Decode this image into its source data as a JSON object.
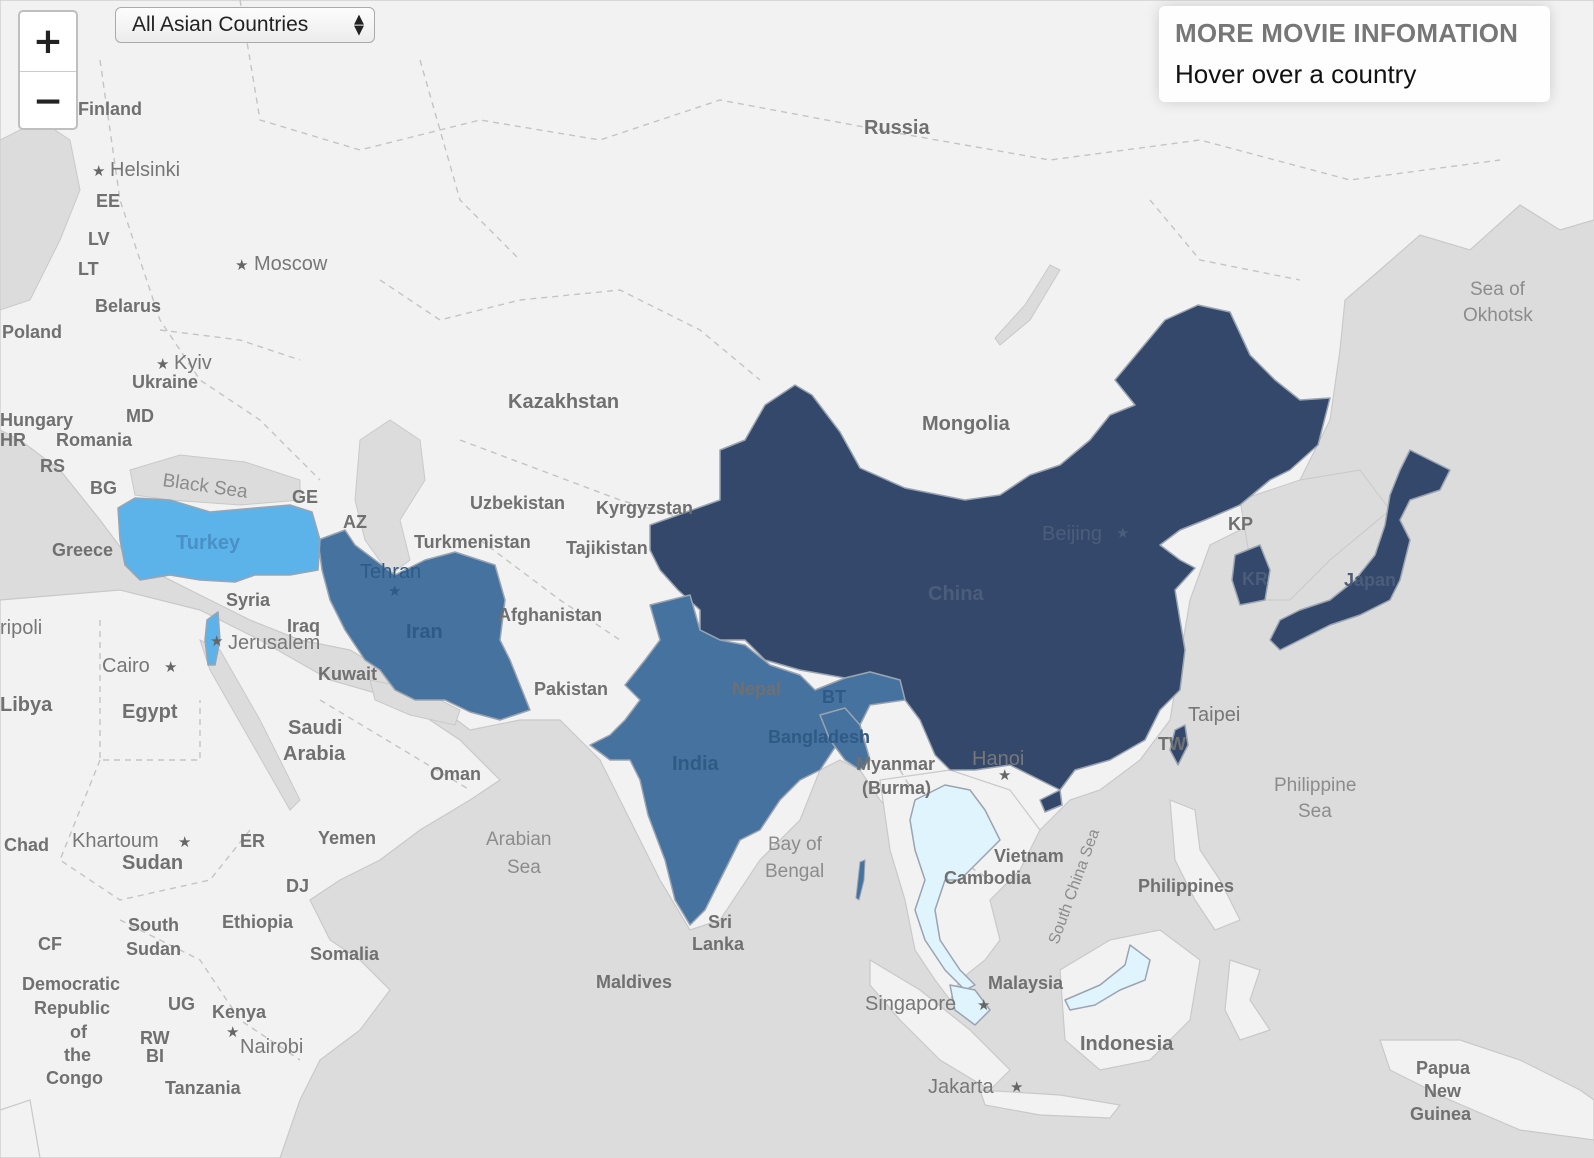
{
  "controls": {
    "zoom_in": "+",
    "zoom_out": "−",
    "region_select": "All Asian Countries"
  },
  "info_panel": {
    "title": "MORE MOVIE INFOMATION",
    "hint": "Hover over a country"
  },
  "colors": {
    "ocean": "#dcdcdc",
    "land": "#f2f2f2",
    "highest": "#34486b",
    "high": "#45729f",
    "medium": "#5cb3ea",
    "low": "#dff4fc"
  },
  "highlighted_countries": {
    "China": "highest",
    "Japan": "highest",
    "KR": "highest",
    "TW": "highest",
    "India": "high",
    "Iran": "high",
    "Bangladesh": "high",
    "Turkey": "medium",
    "Israel": "medium",
    "Thailand": "low",
    "Malaysia": "low"
  },
  "labels": {
    "russia": "Russia",
    "finland": "Finland",
    "helsinki": "Helsinki",
    "ee": "EE",
    "lv": "LV",
    "lt": "LT",
    "moscow": "Moscow",
    "belarus": "Belarus",
    "poland": "Poland",
    "kyiv": "Kyiv",
    "ukraine": "Ukraine",
    "hungary": "Hungary",
    "md": "MD",
    "hr": "HR",
    "romania": "Romania",
    "rs": "RS",
    "bg": "BG",
    "greece": "Greece",
    "black_sea": "Black Sea",
    "ge": "GE",
    "az": "AZ",
    "turkey": "Turkey",
    "kazakhstan": "Kazakhstan",
    "mongolia": "Mongolia",
    "uzbekistan": "Uzbekistan",
    "kyrgyzstan": "Kyrgyzstan",
    "turkmenistan": "Turkmenistan",
    "tajikistan": "Tajikistan",
    "tehran": "Tehran",
    "iran": "Iran",
    "syria": "Syria",
    "iraq": "Iraq",
    "jerusalem": "Jerusalem",
    "tripoli": "ripoli",
    "cairo": "Cairo",
    "libya": "Libya",
    "egypt": "Egypt",
    "kuwait": "Kuwait",
    "saudi_1": "Saudi",
    "saudi_2": "Arabia",
    "oman": "Oman",
    "yemen": "Yemen",
    "afghanistan": "Afghanistan",
    "pakistan": "Pakistan",
    "nepal": "Nepal",
    "bt": "BT",
    "india": "India",
    "bangladesh": "Bangladesh",
    "china": "China",
    "beijing": "Beijing",
    "kp": "KP",
    "kr": "KR",
    "japan": "Japan",
    "taipei": "Taipei",
    "tw": "TW",
    "myanmar_1": "Myanmar",
    "myanmar_2": "(Burma)",
    "hanoi": "Hanoi",
    "vietnam": "Vietnam",
    "cambodia": "Cambodia",
    "philippines": "Philippines",
    "philippine_sea_1": "Philippine",
    "philippine_sea_2": "Sea",
    "south_china_sea": "South China Sea",
    "sea_okhotsk_1": "Sea of",
    "sea_okhotsk_2": "Okhotsk",
    "arabian_sea_1": "Arabian",
    "arabian_sea_2": "Sea",
    "bay_bengal_1": "Bay of",
    "bay_bengal_2": "Bengal",
    "sri_1": "Sri",
    "sri_2": "Lanka",
    "maldives": "Maldives",
    "malaysia": "Malaysia",
    "singapore": "Singapore",
    "indonesia": "Indonesia",
    "jakarta": "Jakarta",
    "png_1": "Papua",
    "png_2": "New",
    "png_3": "Guinea",
    "chad": "Chad",
    "khartoum": "Khartoum",
    "sudan": "Sudan",
    "er": "ER",
    "dj": "DJ",
    "ethiopia": "Ethiopia",
    "south_sudan_1": "South",
    "south_sudan_2": "Sudan",
    "somalia": "Somalia",
    "cf": "CF",
    "drc_1": "Democratic",
    "drc_2": "Republic",
    "drc_3": "of",
    "drc_4": "the",
    "drc_5": "Congo",
    "ug": "UG",
    "kenya": "Kenya",
    "rw": "RW",
    "bi": "BI",
    "nairobi": "Nairobi",
    "tanzania": "Tanzania"
  }
}
